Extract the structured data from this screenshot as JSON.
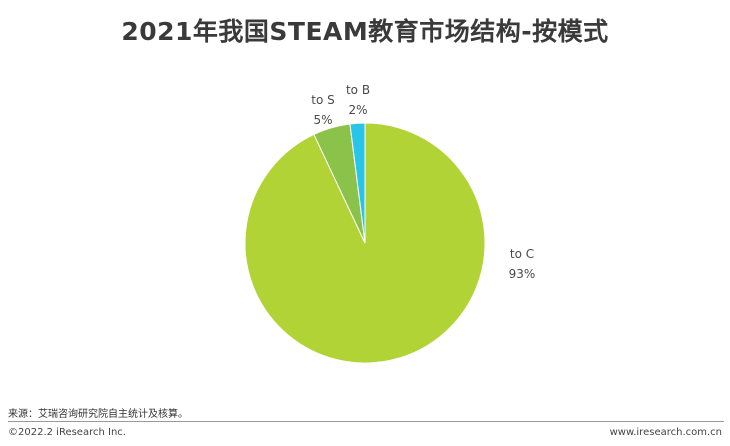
{
  "header": {
    "title": "2021年我国STEAM教育市场结构-按模式"
  },
  "chart_data": {
    "type": "pie",
    "title": "2021年我国STEAM教育市场结构-按模式",
    "slices": [
      {
        "label": "to C",
        "value": 93,
        "value_label": "93%",
        "color": "#b1d335"
      },
      {
        "label": "to S",
        "value": 5,
        "value_label": "5%",
        "color": "#8bc34a"
      },
      {
        "label": "to B",
        "value": 2,
        "value_label": "2%",
        "color": "#29c5e8"
      }
    ],
    "start": "12 o'clock",
    "direction": "clockwise"
  },
  "footer": {
    "source": "来源：艾瑞咨询研究院自主统计及核算。",
    "copyright": "©2022.2 iResearch Inc.",
    "website": "www.iresearch.com.cn"
  }
}
